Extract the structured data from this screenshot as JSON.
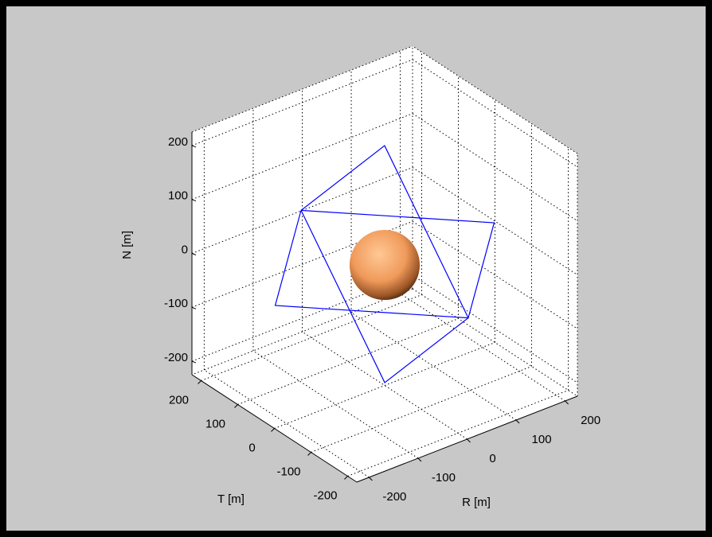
{
  "chart_data": {
    "type": "line3d",
    "xlabel": "R [m]",
    "ylabel": "T [m]",
    "zlabel": "N [m]",
    "xlim": [
      -225,
      225
    ],
    "ylim": [
      -225,
      225
    ],
    "zlim": [
      -225,
      225
    ],
    "xticks": [
      -200,
      -100,
      0,
      100,
      200
    ],
    "yticks": [
      -200,
      -100,
      0,
      100,
      200
    ],
    "zticks": [
      -200,
      -100,
      0,
      100,
      200
    ],
    "grid": true,
    "series": [
      {
        "color": "#0000ff",
        "x": [
          -107,
          168,
          107,
          -168,
          -107
        ],
        "y": [
          85,
          -74,
          -85,
          74,
          85
        ],
        "z": [
          100,
          50,
          -100,
          -50,
          100
        ]
      },
      {
        "color": "#0000ff",
        "x": [
          -107,
          100,
          107,
          -100,
          -107
        ],
        "y": [
          85,
          134,
          -85,
          -134,
          85
        ],
        "z": [
          100,
          125,
          -100,
          -125,
          100
        ]
      }
    ],
    "sphere": {
      "center": [
        0,
        0,
        0
      ],
      "radius": 65,
      "color": "#f4a060"
    }
  }
}
